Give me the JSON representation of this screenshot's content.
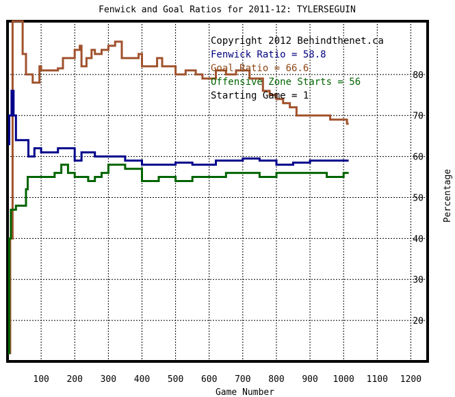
{
  "chart_data": {
    "type": "line",
    "title": "Fenwick and Goal Ratios for 2011-12: TYLERSEGUIN",
    "xlabel": "Game Number",
    "ylabel": "Percentage",
    "xlim": [
      0,
      1250
    ],
    "ylim": [
      10,
      93
    ],
    "x_ticks": [
      100,
      200,
      300,
      400,
      500,
      600,
      700,
      800,
      900,
      1000,
      1100,
      1200
    ],
    "y_ticks": [
      20,
      30,
      40,
      50,
      60,
      70,
      80
    ],
    "grid": true,
    "legend_position": "top-right",
    "annotations": [
      {
        "text": "Copyright 2012 Behindthenet.ca",
        "color": "#000000"
      },
      {
        "text": "Fenwick Ratio = 58.8",
        "color": "#000080"
      },
      {
        "text": "Goal Ratio = 66.6",
        "color": "#8B4513"
      },
      {
        "text": "Offensive Zone Starts = 56",
        "color": "#006400"
      },
      {
        "text": "Starting Game = 1",
        "color": "#000000"
      }
    ],
    "series": [
      {
        "name": "Goal Ratio",
        "color": "#a0522d",
        "x": [
          1,
          8,
          15,
          35,
          45,
          55,
          60,
          65,
          75,
          85,
          95,
          100,
          130,
          150,
          165,
          190,
          200,
          205,
          215,
          220,
          235,
          250,
          260,
          280,
          300,
          320,
          340,
          360,
          390,
          400,
          420,
          445,
          460,
          480,
          500,
          530,
          560,
          580,
          600,
          620,
          650,
          680,
          700,
          720,
          740,
          760,
          780,
          800,
          820,
          840,
          860,
          880,
          900,
          920,
          940,
          960,
          980,
          1000,
          1010,
          1015
        ],
        "values": [
          12,
          40,
          100,
          100,
          85,
          80,
          80,
          80,
          78,
          78,
          82,
          81,
          81,
          81.5,
          84,
          84,
          86,
          86,
          87,
          82,
          84,
          86,
          85,
          86,
          87,
          88,
          84,
          84,
          85,
          82,
          82,
          84,
          82,
          82,
          80,
          81,
          80,
          79,
          79,
          81,
          80,
          81,
          81,
          79,
          79,
          76,
          75,
          74,
          73,
          72,
          70,
          70,
          70,
          70,
          70,
          69,
          69,
          69,
          68,
          68
        ]
      },
      {
        "name": "Fenwick Ratio",
        "color": "#00008b",
        "x": [
          1,
          5,
          12,
          18,
          25,
          40,
          55,
          62,
          70,
          80,
          100,
          150,
          180,
          200,
          220,
          260,
          300,
          350,
          400,
          450,
          500,
          550,
          600,
          620,
          650,
          680,
          700,
          750,
          800,
          850,
          900,
          950,
          1000,
          1015
        ],
        "values": [
          63,
          70,
          76,
          70,
          64,
          64,
          64,
          60,
          60,
          62,
          61,
          62,
          62,
          59,
          61,
          60,
          60,
          59,
          58,
          58,
          58.5,
          58,
          58,
          59,
          59,
          59,
          59.5,
          59,
          58,
          58.5,
          59,
          59,
          59,
          59
        ]
      },
      {
        "name": "Offensive Zone Starts",
        "color": "#006400",
        "x": [
          1,
          5,
          10,
          15,
          25,
          40,
          50,
          55,
          60,
          70,
          80,
          100,
          140,
          160,
          180,
          200,
          240,
          260,
          280,
          300,
          350,
          400,
          450,
          500,
          550,
          600,
          650,
          700,
          750,
          800,
          850,
          900,
          950,
          1000,
          1015
        ],
        "values": [
          12,
          40,
          47,
          47,
          48,
          48,
          48,
          52,
          55,
          55,
          55,
          55,
          56,
          58,
          56,
          55,
          54,
          55,
          56,
          58,
          57,
          54,
          55,
          54,
          55,
          55,
          56,
          56,
          55,
          56,
          56,
          56,
          55,
          56,
          56
        ]
      }
    ]
  }
}
